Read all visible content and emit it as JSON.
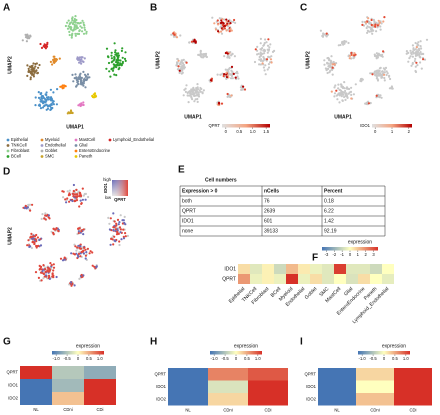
{
  "panels": {
    "A": {
      "label": "A",
      "xlabel": "UMAP1",
      "ylabel": "UMAP2",
      "legend": [
        {
          "name": "Epithelial",
          "color": "#4a90c8"
        },
        {
          "name": "TNKCell",
          "color": "#8c6d3f"
        },
        {
          "name": "Fibroblast",
          "color": "#8fd18f"
        },
        {
          "name": "BCell",
          "color": "#2ca02c"
        },
        {
          "name": "Myeloid",
          "color": "#e08a2a"
        },
        {
          "name": "Endothelial",
          "color": "#9e9ac8"
        },
        {
          "name": "Goblet",
          "color": "#b0b0b0"
        },
        {
          "name": "SMC",
          "color": "#c9a227"
        },
        {
          "name": "MastCell",
          "color": "#e377c2"
        },
        {
          "name": "Glial",
          "color": "#7a8fa6"
        },
        {
          "name": "EnteroEndocrine",
          "color": "#ff7f0e"
        },
        {
          "name": "Paneth",
          "color": "#e8c800"
        },
        {
          "name": "Lymphoid_Endothelial",
          "color": "#d62728"
        }
      ]
    },
    "B": {
      "label": "B",
      "xlabel": "UMAP1",
      "ylabel": "UMAP2",
      "colorbar": {
        "title": "QPRT",
        "ticks": [
          0,
          0.5,
          {
            "value": 1,
            "label": "1.0"
          },
          1.5
        ]
      }
    },
    "C": {
      "label": "C",
      "xlabel": "UMAP1",
      "ylabel": "UMAP2",
      "colorbar": {
        "title": "IDO1",
        "ticks": [
          0,
          1,
          2
        ]
      }
    },
    "D": {
      "label": "D",
      "ylabel": "UMAP2",
      "inset": {
        "high": "high",
        "low": "low",
        "y": "IDO1",
        "x": "QPRT"
      }
    },
    "E": {
      "label": "E",
      "title": "Cell numbers",
      "table": {
        "header": [
          "Expression > 0",
          "nCells",
          "Percent"
        ],
        "rows": [
          [
            "both",
            76,
            0.18
          ],
          [
            "QPRT",
            2639,
            6.22
          ],
          [
            "IDO1",
            601,
            1.42
          ],
          [
            "none",
            39133,
            92.19
          ]
        ]
      }
    },
    "F": {
      "label": "F",
      "title": "expression",
      "ticks": [
        -3,
        -2,
        -1,
        0,
        1,
        2,
        3
      ],
      "rows": [
        "IDO1",
        "QPRT"
      ],
      "columns": [
        "Epithelial",
        "TNKCell",
        "Fibroblast",
        "BCell",
        "Myeloid",
        "Endothelial",
        "Goblet",
        "SMC",
        "MastCell",
        "Glial",
        "EnteroEndocrine",
        "Paneth",
        "Lymphoid_Endothelial"
      ],
      "values": [
        [
          0.5,
          -0.5,
          0.2,
          -0.8,
          1.0,
          0.3,
          -0.3,
          -0.5,
          2.8,
          -0.5,
          -0.5,
          -0.8,
          0.0
        ],
        [
          1.5,
          -0.3,
          0.2,
          -0.3,
          3.0,
          -0.3,
          0.5,
          -0.5,
          0.0,
          -0.6,
          0.5,
          0.0,
          -0.4
        ]
      ]
    },
    "G": {
      "label": "G",
      "title": "expression",
      "ticks": [
        {
          "value": -1,
          "label": "-1.0"
        },
        -0.5,
        0,
        0.5,
        {
          "value": 1,
          "label": "1.0"
        }
      ],
      "rows": [
        "QPRT",
        "IDO1",
        "IDO2"
      ],
      "columns": [
        "NL",
        "CDni",
        "CDi"
      ],
      "values": [
        [
          1.0,
          -0.4,
          -0.6
        ],
        [
          -1.0,
          -0.5,
          1.0
        ],
        [
          -1.0,
          0.3,
          1.0
        ]
      ]
    },
    "H": {
      "label": "H",
      "title": "expression",
      "ticks": [
        {
          "value": -1,
          "label": "-1.0"
        },
        -0.5,
        0,
        0.5,
        {
          "value": 1,
          "label": "1.0"
        }
      ],
      "rows": [
        "QPRT",
        "IDO1",
        "IDO2"
      ],
      "columns": [
        "NL",
        "CDni",
        "CDi"
      ],
      "values": [
        [
          -1.0,
          0.6,
          0.8
        ],
        [
          -1.0,
          -0.2,
          1.0
        ],
        [
          -1.0,
          0.2,
          1.0
        ]
      ]
    },
    "I": {
      "label": "I",
      "title": "expression",
      "ticks": [
        {
          "value": -1,
          "label": "-1.0"
        },
        -0.5,
        0,
        0.5,
        {
          "value": 1,
          "label": "1.0"
        }
      ],
      "rows": [
        "QPRT",
        "IDO1",
        "IDO2"
      ],
      "columns": [
        "NL",
        "CDni",
        "CDi"
      ],
      "values": [
        [
          -1.0,
          0.2,
          1.0
        ],
        [
          -1.0,
          0.0,
          1.0
        ],
        [
          -1.0,
          0.3,
          1.0
        ]
      ]
    }
  }
}
